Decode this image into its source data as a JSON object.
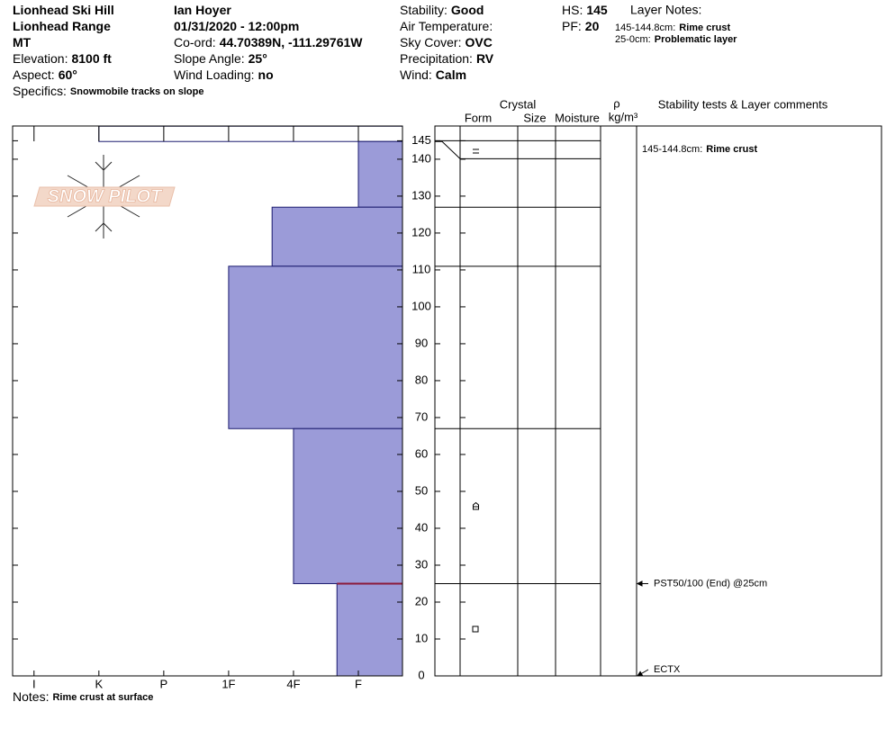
{
  "header": {
    "col1": [
      {
        "value": "Lionhead Ski Hill"
      },
      {
        "value": "Lionhead Range"
      },
      {
        "value": "MT"
      },
      {
        "label": "Elevation:",
        "value": "8100 ft"
      },
      {
        "label": "Aspect:",
        "value": "60°"
      }
    ],
    "specifics": {
      "label": "Specifics:",
      "value": "Snowmobile tracks on slope"
    },
    "col2": [
      {
        "value": "Ian Hoyer"
      },
      {
        "value": "01/31/2020 - 12:00pm"
      },
      {
        "label": "Co-ord:",
        "value": "44.70389N, -111.29761W"
      },
      {
        "label": "Slope Angle:",
        "value": "25°"
      },
      {
        "label": "Wind Loading:",
        "value": "no"
      }
    ],
    "col3": [
      {
        "label": "Stability:",
        "value": "Good"
      },
      {
        "label": "Air Temperature:"
      },
      {
        "label": "Sky Cover:",
        "value": "OVC"
      },
      {
        "label": "Precipitation:",
        "value": "RV"
      },
      {
        "label": "Wind:",
        "value": "Calm"
      }
    ],
    "col4": [
      {
        "label": "HS:",
        "value": 145
      },
      {
        "label": "PF:",
        "value": 20
      }
    ],
    "layer_notes": {
      "title": "Layer Notes:",
      "items": [
        {
          "label": "145-144.8cm:",
          "value": "Rime crust"
        },
        {
          "label": "25-0cm:",
          "value": "Problematic layer"
        }
      ]
    },
    "notes": {
      "label": "Notes:",
      "value": "Rime crust at surface"
    },
    "watermark": "SNOW PILOT"
  },
  "chart_data": {
    "type": "snowprofile",
    "ylim": [
      0,
      149
    ],
    "yticks": [
      0,
      10,
      20,
      30,
      40,
      50,
      60,
      70,
      80,
      90,
      100,
      110,
      120,
      130,
      140,
      145
    ],
    "xlim": [
      6.33,
      0.32
    ],
    "xticks": [
      {
        "value": 6,
        "label": "I"
      },
      {
        "value": 5,
        "label": "K"
      },
      {
        "value": 4,
        "label": "P"
      },
      {
        "value": 3,
        "label": "1F"
      },
      {
        "value": 2,
        "label": "4F"
      },
      {
        "value": 1,
        "label": "F"
      }
    ],
    "layers": [
      {
        "top": 145,
        "bottom": 144.8,
        "hardness": 5,
        "color": "#ffffff"
      },
      {
        "top": 144.8,
        "bottom": 127,
        "hardness": 1,
        "color": "#9b9bd8"
      },
      {
        "top": 127,
        "bottom": 111,
        "hardness": 2.33,
        "color": "#9b9bd8"
      },
      {
        "top": 111,
        "bottom": 67,
        "hardness": 3,
        "color": "#9b9bd8"
      },
      {
        "top": 67,
        "bottom": 25,
        "hardness": 2,
        "color": "#9b9bd8"
      },
      {
        "top": 25,
        "bottom": 0,
        "hardness": 1.33,
        "color": "#9b9bd8"
      }
    ],
    "problem_layer": {
      "depth": 25,
      "color": "#8b1a3a"
    },
    "columns": {
      "crystal": "Crystal",
      "form": "Form",
      "size": "Size",
      "moisture": "Moisture",
      "density": "ρ",
      "density_unit": "kg/m³",
      "comments": "Stability tests & Layer comments"
    },
    "layer_comments": [
      {
        "layer": 0,
        "label": "145-144.8cm:",
        "value": "Rime crust"
      }
    ],
    "tests": [
      {
        "text": "PST50/100 (End) @25cm",
        "depth": 25
      },
      {
        "text": "ECTX",
        "depth": 0
      }
    ]
  }
}
